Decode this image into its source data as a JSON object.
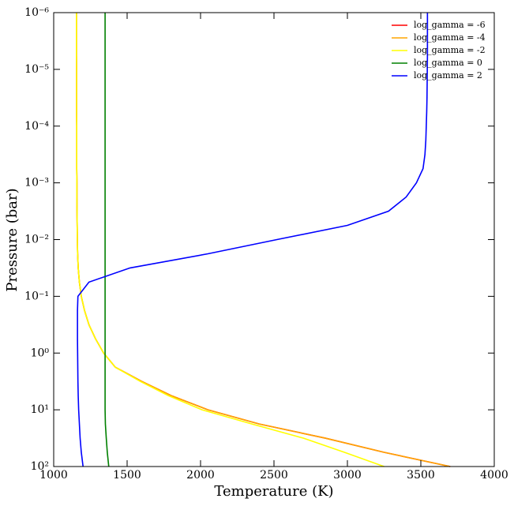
{
  "chart_data": {
    "type": "line",
    "xlabel": "Temperature (K)",
    "ylabel": "Pressure (bar)",
    "y": [
      1e-06,
      1.78e-06,
      3.16e-06,
      5.62e-06,
      1e-05,
      1.78e-05,
      3.16e-05,
      5.62e-05,
      0.0001,
      0.000178,
      0.000316,
      0.000562,
      0.001,
      0.00178,
      0.00316,
      0.00562,
      0.01,
      0.0178,
      0.0316,
      0.0562,
      0.1,
      0.178,
      0.316,
      0.562,
      1,
      1.78,
      3.16,
      5.62,
      10,
      17.8,
      31.6,
      56.2,
      100
    ],
    "series": [
      {
        "name": "log_gamma = -6",
        "color": "#ff0000",
        "values": [
          1155,
          1155,
          1155,
          1155,
          1156,
          1156,
          1156,
          1156,
          1157,
          1157,
          1157,
          1157,
          1158,
          1158,
          1159,
          1160,
          1161,
          1163,
          1167,
          1175,
          1188,
          1210,
          1240,
          1285,
          1340,
          1420,
          1600,
          1800,
          2050,
          2400,
          2850,
          3250,
          3700
        ]
      },
      {
        "name": "log_gamma = -4",
        "color": "#ffa500",
        "values": [
          1155,
          1155,
          1155,
          1155,
          1156,
          1156,
          1156,
          1156,
          1157,
          1157,
          1157,
          1157,
          1158,
          1158,
          1159,
          1160,
          1161,
          1163,
          1167,
          1175,
          1188,
          1210,
          1240,
          1285,
          1340,
          1420,
          1600,
          1800,
          2050,
          2400,
          2850,
          3250,
          3700
        ]
      },
      {
        "name": "log_gamma = -2",
        "color": "#ffff00",
        "values": [
          1155,
          1155,
          1155,
          1155,
          1156,
          1156,
          1156,
          1156,
          1157,
          1157,
          1157,
          1157,
          1158,
          1158,
          1159,
          1160,
          1161,
          1163,
          1167,
          1175,
          1188,
          1210,
          1240,
          1285,
          1340,
          1420,
          1590,
          1780,
          2010,
          2350,
          2700,
          2980,
          3250
        ]
      },
      {
        "name": "log_gamma = 0",
        "color": "#008000",
        "values": [
          1350,
          1350,
          1350,
          1350,
          1350,
          1350,
          1350,
          1350,
          1350,
          1350,
          1350,
          1350,
          1350,
          1350,
          1350,
          1350,
          1350,
          1350,
          1350,
          1350,
          1350,
          1350,
          1350,
          1350,
          1350,
          1350,
          1350,
          1350,
          1350,
          1352,
          1358,
          1365,
          1375
        ]
      },
      {
        "name": "log_gamma = 2",
        "color": "#0000ff",
        "values": [
          3545,
          3545,
          3545,
          3545,
          3544,
          3543,
          3542,
          3540,
          3537,
          3534,
          3528,
          3515,
          3470,
          3400,
          3280,
          3000,
          2520,
          2050,
          1520,
          1240,
          1165,
          1162,
          1162,
          1162,
          1163,
          1164,
          1165,
          1167,
          1170,
          1175,
          1180,
          1188,
          1200
        ]
      }
    ],
    "xlim": [
      1000,
      4000
    ],
    "xticks": [
      1000,
      1500,
      2000,
      2500,
      3000,
      3500,
      4000
    ],
    "log_y": true,
    "ylim": [
      100,
      1e-06
    ],
    "yticks": [
      {
        "value": 1e-06,
        "label": "10⁻⁶"
      },
      {
        "value": 1e-05,
        "label": "10⁻⁵"
      },
      {
        "value": 0.0001,
        "label": "10⁻⁴"
      },
      {
        "value": 0.001,
        "label": "10⁻³"
      },
      {
        "value": 0.01,
        "label": "10⁻²"
      },
      {
        "value": 0.1,
        "label": "10⁻¹"
      },
      {
        "value": 1,
        "label": "10⁰"
      },
      {
        "value": 10,
        "label": "10¹"
      },
      {
        "value": 100,
        "label": "10²"
      }
    ],
    "legend": "upper right"
  }
}
